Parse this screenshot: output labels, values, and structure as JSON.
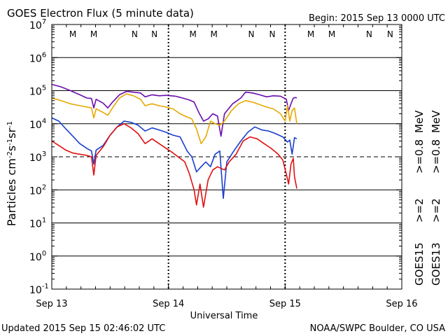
{
  "header": {
    "title": "GOES Electron Flux (5 minute data)",
    "begin": "Begin: 2015 Sep 13 0000 UTC"
  },
  "footer": {
    "updated": "Updated 2015 Sep 15 02:46:02 UTC",
    "credit": "NOAA/SWPC Boulder, CO USA"
  },
  "colors": {
    "goes15_ge08": "#6a0dad",
    "goes13_ge08": "#e6a800",
    "goes15_ge2": "#1a3fcc",
    "goes13_ge2": "#e01010",
    "marker_m": "#d01010",
    "marker_n": "#1a3fcc"
  },
  "chart_data": {
    "type": "line",
    "title": "GOES Electron Flux (5 minute data)",
    "xlabel": "Universal Time",
    "ylabel": "Particles cm-2s-1sr-1",
    "y_scale": "log",
    "ylim": [
      0.1,
      10000000
    ],
    "xlim_days": [
      0,
      3
    ],
    "x_ticks": [
      {
        "day": 0,
        "label": "Sep 13"
      },
      {
        "day": 1,
        "label": "Sep 14"
      },
      {
        "day": 2,
        "label": "Sep 15"
      },
      {
        "day": 3,
        "label": "Sep 16"
      }
    ],
    "y_ticks": [
      {
        "exp": 7,
        "base": "10",
        "sup": "7"
      },
      {
        "exp": 6,
        "base": "10",
        "sup": "6"
      },
      {
        "exp": 5,
        "base": "10",
        "sup": "5"
      },
      {
        "exp": 4,
        "base": "10",
        "sup": "4"
      },
      {
        "exp": 3,
        "base": "10",
        "sup": "3"
      },
      {
        "exp": 2,
        "base": "10",
        "sup": "2"
      },
      {
        "exp": 1,
        "base": "10",
        "sup": "1"
      },
      {
        "exp": 0,
        "base": "10",
        "sup": "0"
      },
      {
        "exp": -1,
        "base": "10",
        "sup": "-1"
      }
    ],
    "solid_gridlines_exp": [
      6,
      5,
      4,
      2,
      1,
      0
    ],
    "dashed_threshold_exp": 3,
    "day_dividers": [
      1,
      2
    ],
    "markers": [
      {
        "day": 0.18,
        "label": "M",
        "kind": "m"
      },
      {
        "day": 0.36,
        "label": "M",
        "kind": "m"
      },
      {
        "day": 0.71,
        "label": "N",
        "kind": "n"
      },
      {
        "day": 0.88,
        "label": "N",
        "kind": "n"
      },
      {
        "day": 1.21,
        "label": "M",
        "kind": "m"
      },
      {
        "day": 1.39,
        "label": "M",
        "kind": "m"
      },
      {
        "day": 1.71,
        "label": "N",
        "kind": "n"
      },
      {
        "day": 1.89,
        "label": "N",
        "kind": "n"
      },
      {
        "day": 2.22,
        "label": "M",
        "kind": "m"
      },
      {
        "day": 2.4,
        "label": "M",
        "kind": "m"
      },
      {
        "day": 2.72,
        "label": "N",
        "kind": "n"
      },
      {
        "day": 2.9,
        "label": "N",
        "kind": "n"
      }
    ],
    "legend": [
      {
        "satellite": "GOES15",
        "threshold": ">=2",
        "energy_tag": "",
        "color_key": "goes15_ge2"
      },
      {
        "satellite": "GOES13",
        "threshold": ">=2",
        "energy_tag": "",
        "color_key": "goes13_ge2"
      },
      {
        "satellite": "",
        "threshold": ">=0.8",
        "energy_tag": "MeV",
        "color_key": "goes15_ge08"
      },
      {
        "satellite": "",
        "threshold": ">=0.8",
        "energy_tag": "MeV",
        "color_key": "goes13_ge08"
      }
    ],
    "legend_labels": {
      "goes15": "GOES15",
      "goes13": "GOES13",
      "ge2": ">=2",
      "ge08": ">=0.8",
      "mev": "MeV"
    },
    "series": [
      {
        "name": "GOES15 >=0.8 MeV",
        "color_key": "goes15_ge08",
        "points": [
          [
            0.0,
            155000
          ],
          [
            0.08,
            130000
          ],
          [
            0.16,
            100000
          ],
          [
            0.24,
            75000
          ],
          [
            0.3,
            60000
          ],
          [
            0.34,
            58000
          ],
          [
            0.36,
            30000
          ],
          [
            0.38,
            55000
          ],
          [
            0.44,
            42000
          ],
          [
            0.48,
            30000
          ],
          [
            0.52,
            45000
          ],
          [
            0.58,
            75000
          ],
          [
            0.64,
            95000
          ],
          [
            0.7,
            90000
          ],
          [
            0.76,
            85000
          ],
          [
            0.8,
            65000
          ],
          [
            0.86,
            75000
          ],
          [
            0.92,
            70000
          ],
          [
            0.98,
            72000
          ],
          [
            1.06,
            68000
          ],
          [
            1.12,
            60000
          ],
          [
            1.18,
            52000
          ],
          [
            1.22,
            45000
          ],
          [
            1.26,
            22000
          ],
          [
            1.3,
            12000
          ],
          [
            1.34,
            14000
          ],
          [
            1.38,
            20000
          ],
          [
            1.42,
            17000
          ],
          [
            1.45,
            4200
          ],
          [
            1.48,
            20000
          ],
          [
            1.55,
            40000
          ],
          [
            1.62,
            60000
          ],
          [
            1.66,
            90000
          ],
          [
            1.72,
            85000
          ],
          [
            1.78,
            75000
          ],
          [
            1.84,
            65000
          ],
          [
            1.9,
            70000
          ],
          [
            1.96,
            68000
          ],
          [
            2.01,
            55000
          ],
          [
            2.03,
            25000
          ],
          [
            2.05,
            40000
          ],
          [
            2.07,
            60000
          ],
          [
            2.09,
            62000
          ],
          [
            2.1,
            60000
          ]
        ]
      },
      {
        "name": "GOES13 >=0.8 MeV",
        "color_key": "goes13_ge08",
        "points": [
          [
            0.0,
            60000
          ],
          [
            0.08,
            50000
          ],
          [
            0.16,
            40000
          ],
          [
            0.24,
            35000
          ],
          [
            0.3,
            32000
          ],
          [
            0.34,
            30000
          ],
          [
            0.36,
            15000
          ],
          [
            0.38,
            28000
          ],
          [
            0.44,
            22000
          ],
          [
            0.48,
            18000
          ],
          [
            0.52,
            30000
          ],
          [
            0.58,
            60000
          ],
          [
            0.64,
            80000
          ],
          [
            0.7,
            70000
          ],
          [
            0.76,
            55000
          ],
          [
            0.8,
            35000
          ],
          [
            0.86,
            40000
          ],
          [
            0.92,
            35000
          ],
          [
            0.98,
            32000
          ],
          [
            1.04,
            28000
          ],
          [
            1.1,
            20000
          ],
          [
            1.16,
            16000
          ],
          [
            1.2,
            14000
          ],
          [
            1.24,
            7000
          ],
          [
            1.28,
            2500
          ],
          [
            1.32,
            4000
          ],
          [
            1.36,
            12000
          ],
          [
            1.4,
            10000
          ],
          [
            1.44,
            9000
          ],
          [
            1.48,
            12000
          ],
          [
            1.54,
            25000
          ],
          [
            1.6,
            40000
          ],
          [
            1.66,
            50000
          ],
          [
            1.72,
            45000
          ],
          [
            1.78,
            38000
          ],
          [
            1.84,
            32000
          ],
          [
            1.9,
            28000
          ],
          [
            1.96,
            20000
          ],
          [
            2.0,
            12000
          ],
          [
            2.02,
            35000
          ],
          [
            2.04,
            12000
          ],
          [
            2.06,
            25000
          ],
          [
            2.08,
            30000
          ],
          [
            2.1,
            10000
          ]
        ]
      },
      {
        "name": "GOES15 >=2 MeV",
        "color_key": "goes15_ge2",
        "points": [
          [
            0.0,
            15000
          ],
          [
            0.06,
            12000
          ],
          [
            0.12,
            7000
          ],
          [
            0.18,
            4200
          ],
          [
            0.24,
            2500
          ],
          [
            0.3,
            1800
          ],
          [
            0.34,
            1500
          ],
          [
            0.36,
            600
          ],
          [
            0.38,
            1600
          ],
          [
            0.44,
            2200
          ],
          [
            0.5,
            4500
          ],
          [
            0.56,
            8000
          ],
          [
            0.62,
            12000
          ],
          [
            0.68,
            11000
          ],
          [
            0.74,
            9000
          ],
          [
            0.8,
            6000
          ],
          [
            0.86,
            7500
          ],
          [
            0.92,
            6500
          ],
          [
            0.98,
            5500
          ],
          [
            1.04,
            4500
          ],
          [
            1.1,
            4000
          ],
          [
            1.16,
            1500
          ],
          [
            1.2,
            1000
          ],
          [
            1.24,
            350
          ],
          [
            1.28,
            500
          ],
          [
            1.32,
            700
          ],
          [
            1.36,
            500
          ],
          [
            1.4,
            1200
          ],
          [
            1.44,
            1500
          ],
          [
            1.47,
            55
          ],
          [
            1.5,
            700
          ],
          [
            1.56,
            1500
          ],
          [
            1.62,
            3000
          ],
          [
            1.68,
            5500
          ],
          [
            1.74,
            8000
          ],
          [
            1.8,
            6500
          ],
          [
            1.86,
            6000
          ],
          [
            1.92,
            5000
          ],
          [
            1.98,
            4000
          ],
          [
            2.02,
            2800
          ],
          [
            2.04,
            3200
          ],
          [
            2.06,
            1200
          ],
          [
            2.08,
            3800
          ],
          [
            2.1,
            3500
          ]
        ]
      },
      {
        "name": "GOES13 >=2 MeV",
        "color_key": "goes13_ge2",
        "points": [
          [
            0.0,
            3000
          ],
          [
            0.06,
            2200
          ],
          [
            0.12,
            1600
          ],
          [
            0.18,
            1300
          ],
          [
            0.24,
            1200
          ],
          [
            0.3,
            1100
          ],
          [
            0.34,
            1000
          ],
          [
            0.36,
            280
          ],
          [
            0.38,
            1100
          ],
          [
            0.44,
            2000
          ],
          [
            0.5,
            4500
          ],
          [
            0.56,
            8000
          ],
          [
            0.62,
            10000
          ],
          [
            0.68,
            7500
          ],
          [
            0.74,
            5000
          ],
          [
            0.8,
            2500
          ],
          [
            0.86,
            3500
          ],
          [
            0.92,
            2500
          ],
          [
            0.98,
            1800
          ],
          [
            1.04,
            1300
          ],
          [
            1.1,
            900
          ],
          [
            1.14,
            700
          ],
          [
            1.18,
            300
          ],
          [
            1.22,
            100
          ],
          [
            1.24,
            35
          ],
          [
            1.27,
            150
          ],
          [
            1.3,
            30
          ],
          [
            1.34,
            200
          ],
          [
            1.38,
            400
          ],
          [
            1.42,
            500
          ],
          [
            1.48,
            400
          ],
          [
            1.52,
            700
          ],
          [
            1.58,
            1200
          ],
          [
            1.64,
            3000
          ],
          [
            1.7,
            4000
          ],
          [
            1.76,
            3500
          ],
          [
            1.82,
            2500
          ],
          [
            1.88,
            1800
          ],
          [
            1.94,
            1200
          ],
          [
            1.98,
            800
          ],
          [
            2.01,
            300
          ],
          [
            2.03,
            150
          ],
          [
            2.05,
            600
          ],
          [
            2.07,
            900
          ],
          [
            2.08,
            250
          ],
          [
            2.1,
            110
          ]
        ]
      }
    ]
  }
}
